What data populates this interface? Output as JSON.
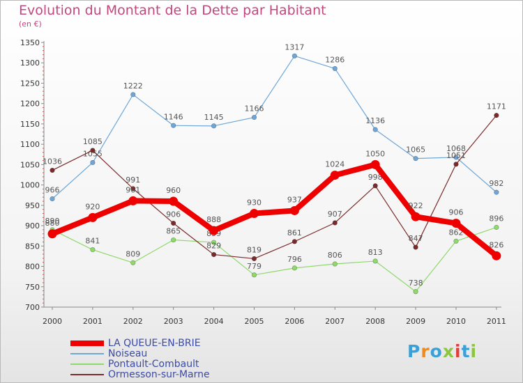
{
  "title": "Evolution du Montant de la Dette par Habitant",
  "unit": "(en €)",
  "logo": {
    "text": "Proxiti",
    "colors": [
      "#3aa0d8",
      "#f08a1c",
      "#3aa0d8",
      "#8cc63f",
      "#e23c3c",
      "#3aa0d8",
      "#8cc63f"
    ]
  },
  "chart_data": {
    "type": "line",
    "title": "Evolution du Montant de la Dette par Habitant",
    "subtitle": "(en €)",
    "x": [
      "2000",
      "2001",
      "2002",
      "2003",
      "2004",
      "2005",
      "2006",
      "2007",
      "2008",
      "2009",
      "2010",
      "2011"
    ],
    "ylim": [
      700,
      1350
    ],
    "yticks": [
      700,
      750,
      800,
      850,
      900,
      950,
      1000,
      1050,
      1100,
      1150,
      1200,
      1250,
      1300,
      1350
    ],
    "grid": false,
    "legend_position": "bottom-left",
    "series": [
      {
        "name": "LA QUEUE-EN-BRIE",
        "color": "#ee0000",
        "values": [
          880,
          920,
          961,
          960,
          888,
          930,
          937,
          1024,
          1050,
          922,
          906,
          826
        ]
      },
      {
        "name": "Noiseau",
        "color": "#6fa6d6",
        "values": [
          966,
          1055,
          1222,
          1146,
          1145,
          1166,
          1317,
          1286,
          1136,
          1065,
          1068,
          982
        ]
      },
      {
        "name": "Pontault-Combault",
        "color": "#8fd86a",
        "values": [
          890,
          841,
          809,
          865,
          859,
          779,
          796,
          806,
          813,
          738,
          862,
          896
        ]
      },
      {
        "name": "Ormesson-sur-Marne",
        "color": "#7a2a2a",
        "values": [
          1036,
          1085,
          991,
          906,
          829,
          819,
          861,
          907,
          998,
          847,
          1051,
          1171
        ]
      }
    ]
  }
}
